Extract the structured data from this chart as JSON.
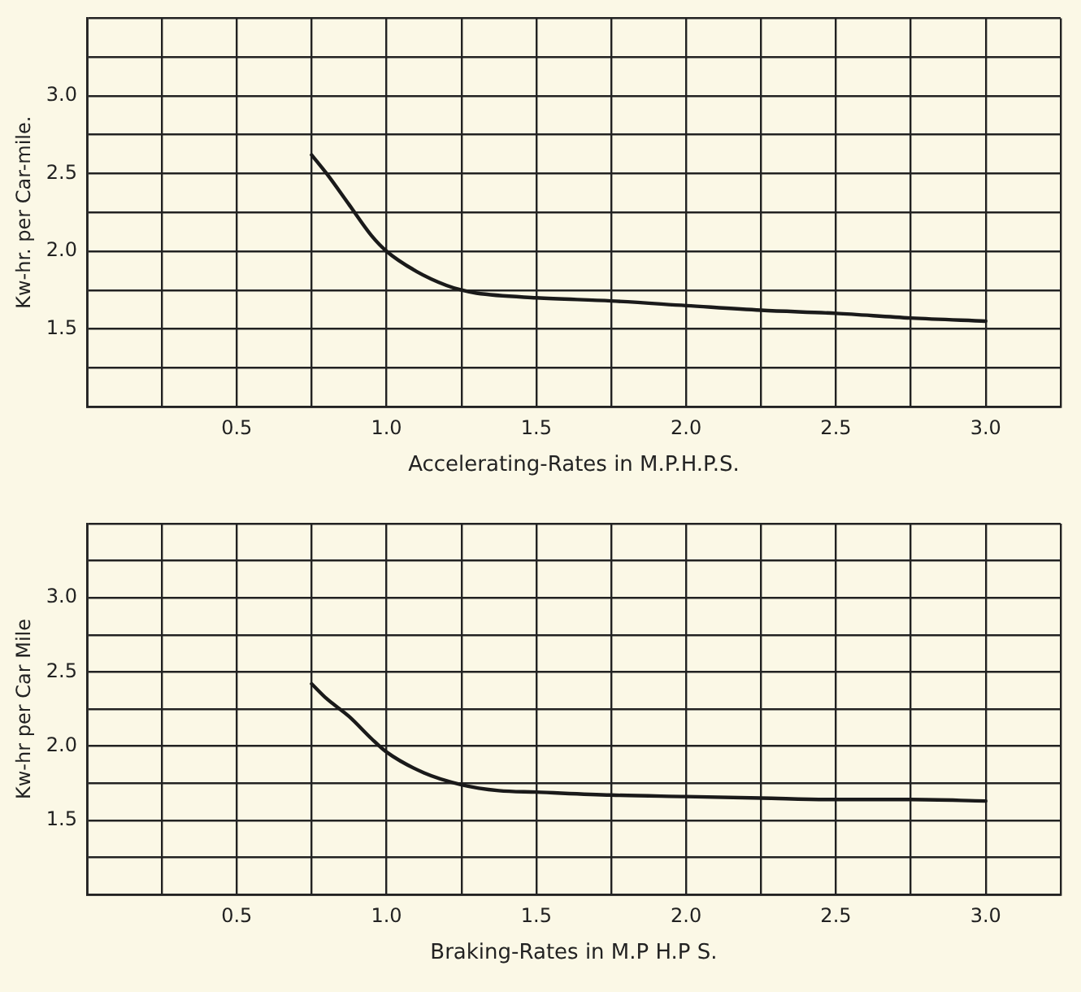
{
  "chart_data": [
    {
      "type": "line",
      "xlabel": "Accelerating-Rates in M.P.H.P.S.",
      "ylabel": "Kw-hr. per Car-mile.",
      "grid": true,
      "legend": false,
      "marker": "none",
      "line_style": "solid",
      "xlim": [
        0,
        3.25
      ],
      "ylim": [
        1,
        3.5
      ],
      "xticks": [
        {
          "value": 0,
          "label": null
        },
        {
          "value": 0.25,
          "label": null
        },
        {
          "value": 0.5,
          "label": "0.5"
        },
        {
          "value": 0.75,
          "label": null
        },
        {
          "value": 1,
          "label": "1.0"
        },
        {
          "value": 1.25,
          "label": null
        },
        {
          "value": 1.5,
          "label": "1.5"
        },
        {
          "value": 1.75,
          "label": null
        },
        {
          "value": 2,
          "label": "2.0"
        },
        {
          "value": 2.25,
          "label": null
        },
        {
          "value": 2.5,
          "label": "2.5"
        },
        {
          "value": 2.75,
          "label": null
        },
        {
          "value": 3,
          "label": "3.0"
        },
        {
          "value": 3.25,
          "label": null
        }
      ],
      "yticks": [
        {
          "value": 1,
          "label": null
        },
        {
          "value": 1.25,
          "label": null
        },
        {
          "value": 1.5,
          "label": "1.5"
        },
        {
          "value": 1.75,
          "label": null
        },
        {
          "value": 2,
          "label": "2.0"
        },
        {
          "value": 2.25,
          "label": null
        },
        {
          "value": 2.5,
          "label": "2.5"
        },
        {
          "value": 2.75,
          "label": null
        },
        {
          "value": 3,
          "label": "3.0"
        },
        {
          "value": 3.25,
          "label": null
        },
        {
          "value": 3.5,
          "label": null
        }
      ],
      "series": [
        {
          "color": "#1a1a1a",
          "x": [
            0.75,
            0.8,
            0.875,
            0.95,
            1.0,
            1.1,
            1.2,
            1.25,
            1.3,
            1.5,
            1.75,
            2.0,
            2.25,
            2.5,
            2.75,
            3.0
          ],
          "values": [
            2.62,
            2.5,
            2.3,
            2.1,
            2.0,
            1.87,
            1.78,
            1.75,
            1.73,
            1.7,
            1.68,
            1.65,
            1.62,
            1.6,
            1.57,
            1.55
          ]
        }
      ]
    },
    {
      "type": "line",
      "xlabel": "Braking-Rates in M.P H.P S.",
      "ylabel": "Kw-hr per Car Mile",
      "grid": true,
      "legend": false,
      "marker": "none",
      "line_style": "solid",
      "xlim": [
        0,
        3.25
      ],
      "ylim": [
        1,
        3.5
      ],
      "xticks": [
        {
          "value": 0,
          "label": null
        },
        {
          "value": 0.25,
          "label": null
        },
        {
          "value": 0.5,
          "label": "0.5"
        },
        {
          "value": 0.75,
          "label": null
        },
        {
          "value": 1,
          "label": "1.0"
        },
        {
          "value": 1.25,
          "label": null
        },
        {
          "value": 1.5,
          "label": "1.5"
        },
        {
          "value": 1.75,
          "label": null
        },
        {
          "value": 2,
          "label": "2.0"
        },
        {
          "value": 2.25,
          "label": null
        },
        {
          "value": 2.5,
          "label": "2.5"
        },
        {
          "value": 2.75,
          "label": null
        },
        {
          "value": 3,
          "label": "3.0"
        },
        {
          "value": 3.25,
          "label": null
        }
      ],
      "yticks": [
        {
          "value": 1,
          "label": null
        },
        {
          "value": 1.25,
          "label": null
        },
        {
          "value": 1.5,
          "label": "1.5"
        },
        {
          "value": 1.75,
          "label": null
        },
        {
          "value": 2,
          "label": "2.0"
        },
        {
          "value": 2.25,
          "label": null
        },
        {
          "value": 2.5,
          "label": "2.5"
        },
        {
          "value": 2.75,
          "label": null
        },
        {
          "value": 3,
          "label": "3.0"
        },
        {
          "value": 3.25,
          "label": null
        },
        {
          "value": 3.5,
          "label": null
        }
      ],
      "series": [
        {
          "color": "#1a1a1a",
          "x": [
            0.75,
            0.8,
            0.875,
            0.95,
            1.0,
            1.125,
            1.25,
            1.375,
            1.5,
            1.75,
            2.0,
            2.25,
            2.5,
            2.75,
            3.0
          ],
          "values": [
            2.42,
            2.32,
            2.2,
            2.05,
            1.96,
            1.82,
            1.74,
            1.7,
            1.69,
            1.67,
            1.66,
            1.65,
            1.64,
            1.64,
            1.63
          ]
        }
      ]
    }
  ]
}
